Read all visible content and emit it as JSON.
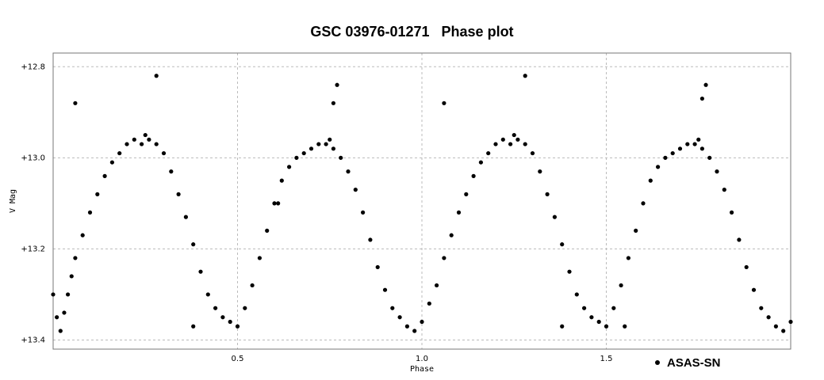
{
  "chart_data": {
    "type": "scatter",
    "title": "GSC 03976-01271   Phase plot",
    "xlabel": "Phase",
    "ylabel": "V Mag",
    "xlim": [
      0.0,
      2.0
    ],
    "ylim": [
      12.77,
      13.42
    ],
    "y_inverted": true,
    "x_ticks": [
      0.5,
      1.0,
      1.5
    ],
    "x_tick_labels": [
      "0.5",
      "1.0",
      "1.5"
    ],
    "y_ticks": [
      12.8,
      13.0,
      13.2,
      13.4
    ],
    "y_tick_labels": [
      "+12.8",
      "+13.0",
      "+13.2",
      "+13.4"
    ],
    "grid": true,
    "legend_position": "bottom-right",
    "marker_color": "#000000",
    "series": [
      {
        "name": "ASAS-SN",
        "x": [
          0.0,
          0.01,
          0.02,
          0.03,
          0.04,
          0.05,
          0.06,
          0.08,
          0.1,
          0.12,
          0.14,
          0.16,
          0.18,
          0.2,
          0.22,
          0.24,
          0.25,
          0.26,
          0.28,
          0.3,
          0.32,
          0.34,
          0.36,
          0.38,
          0.4,
          0.42,
          0.44,
          0.46,
          0.48,
          0.5,
          0.52,
          0.54,
          0.56,
          0.58,
          0.6,
          0.62,
          0.64,
          0.66,
          0.68,
          0.7,
          0.72,
          0.74,
          0.75,
          0.76,
          0.78,
          0.8,
          0.82,
          0.84,
          0.86,
          0.88,
          0.9,
          0.92,
          0.94,
          0.96,
          0.98,
          1.0,
          1.02,
          1.04,
          1.06,
          1.08,
          1.1,
          1.12,
          1.14,
          1.16,
          1.18,
          1.2,
          1.22,
          1.24,
          1.25,
          1.26,
          1.28,
          1.3,
          1.32,
          1.34,
          1.36,
          1.38,
          1.4,
          1.42,
          1.44,
          1.46,
          1.48,
          1.5,
          1.52,
          1.54,
          1.56,
          1.58,
          1.6,
          1.62,
          1.64,
          1.66,
          1.68,
          1.7,
          1.72,
          1.74,
          1.75,
          1.76,
          1.78,
          1.8,
          1.82,
          1.84,
          1.86,
          1.88,
          1.9,
          1.92,
          1.94,
          1.96,
          1.98,
          2.0,
          0.06,
          0.28,
          0.38,
          0.61,
          0.77,
          0.76,
          1.06,
          1.28,
          1.38,
          1.55,
          1.77,
          1.76
        ],
        "y": [
          13.3,
          13.35,
          13.38,
          13.34,
          13.3,
          13.26,
          13.22,
          13.17,
          13.12,
          13.08,
          13.04,
          13.01,
          12.99,
          12.97,
          12.96,
          12.97,
          12.95,
          12.96,
          12.97,
          12.99,
          13.03,
          13.08,
          13.13,
          13.19,
          13.25,
          13.3,
          13.33,
          13.35,
          13.36,
          13.37,
          13.33,
          13.28,
          13.22,
          13.16,
          13.1,
          13.05,
          13.02,
          13.0,
          12.99,
          12.98,
          12.97,
          12.97,
          12.96,
          12.98,
          13.0,
          13.03,
          13.07,
          13.12,
          13.18,
          13.24,
          13.29,
          13.33,
          13.35,
          13.37,
          13.38,
          13.36,
          13.32,
          13.28,
          13.22,
          13.17,
          13.12,
          13.08,
          13.04,
          13.01,
          12.99,
          12.97,
          12.96,
          12.97,
          12.95,
          12.96,
          12.97,
          12.99,
          13.03,
          13.08,
          13.13,
          13.19,
          13.25,
          13.3,
          13.33,
          13.35,
          13.36,
          13.37,
          13.33,
          13.28,
          13.22,
          13.16,
          13.1,
          13.05,
          13.02,
          13.0,
          12.99,
          12.98,
          12.97,
          12.97,
          12.96,
          12.98,
          13.0,
          13.03,
          13.07,
          13.12,
          13.18,
          13.24,
          13.29,
          13.33,
          13.35,
          13.37,
          13.38,
          13.36,
          12.88,
          12.82,
          13.37,
          13.1,
          12.84,
          12.88,
          12.88,
          12.82,
          13.37,
          13.37,
          12.84,
          12.87
        ]
      }
    ]
  }
}
